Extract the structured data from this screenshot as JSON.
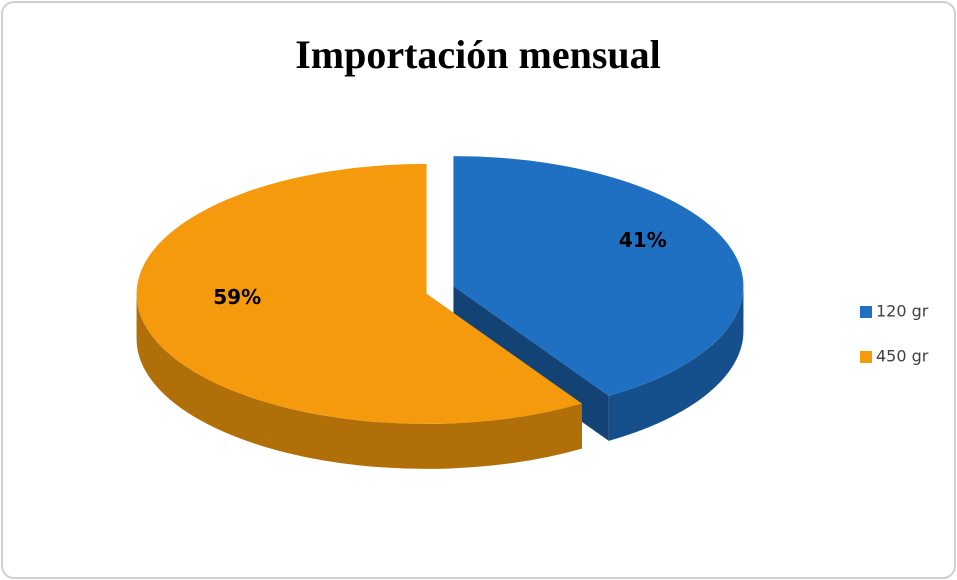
{
  "chart_data": {
    "type": "pie",
    "title": "Importación mensual",
    "categories": [
      "120 gr",
      "450 gr"
    ],
    "values": [
      41,
      59
    ],
    "value_labels": [
      "41%",
      "59%"
    ],
    "colors": [
      "#1f6fc3",
      "#f59a0c"
    ],
    "legend": "right"
  }
}
